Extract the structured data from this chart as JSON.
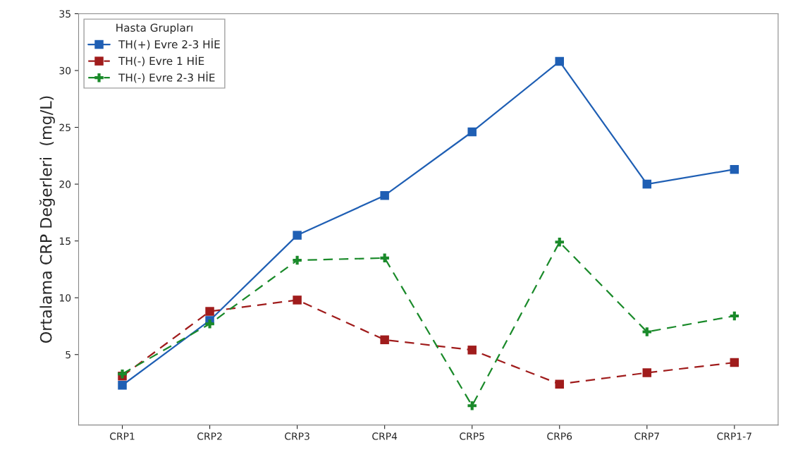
{
  "chart_data": {
    "type": "line",
    "ylabel": "Ortalama CRP Değerleri  (mg/L)",
    "legend_title": "Hasta Grupları",
    "legend": "top left",
    "grid": false,
    "categories": [
      "CRP1",
      "CRP2",
      "CRP3",
      "CRP4",
      "CRP5",
      "CRP6",
      "CRP7",
      "CRP1-7"
    ],
    "ylim": [
      -1.2,
      35
    ],
    "yticks": [
      5,
      10,
      15,
      20,
      25,
      30,
      35
    ],
    "series": [
      {
        "name": "TH(+) Evre 2-3 HİE",
        "color": "#1f5fb4",
        "marker": "square",
        "line_style": "solid",
        "values": [
          2.3,
          8.0,
          15.5,
          19.0,
          24.6,
          30.8,
          20.0,
          21.3
        ]
      },
      {
        "name": "TH(-) Evre 1 HİE",
        "color": "#a01c1c",
        "marker": "square",
        "line_style": "dashed",
        "values": [
          3.1,
          8.8,
          9.8,
          6.3,
          5.4,
          2.4,
          3.4,
          4.3
        ]
      },
      {
        "name": "TH(-) Evre 2-3 HİE",
        "color": "#1a8a2a",
        "marker": "cross",
        "line_style": "dashed",
        "values": [
          3.3,
          7.7,
          13.3,
          13.5,
          0.5,
          14.9,
          7.0,
          8.4
        ]
      }
    ]
  }
}
